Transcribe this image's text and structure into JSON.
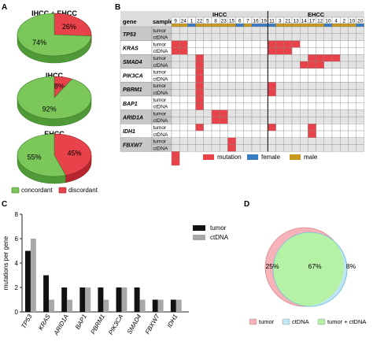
{
  "panels": {
    "A": "A",
    "B": "B",
    "C": "C",
    "D": "D"
  },
  "chart_data": [
    {
      "type": "pie",
      "panel": "A",
      "charts": [
        {
          "title": "IHCC + EHCC",
          "slices": [
            {
              "label": "74%",
              "value": 74,
              "category": "concordant"
            },
            {
              "label": "26%",
              "value": 26,
              "category": "discordant"
            }
          ]
        },
        {
          "title": "IHCC",
          "slices": [
            {
              "label": "92%",
              "value": 92,
              "category": "concordant"
            },
            {
              "label": "8%",
              "value": 8,
              "category": "discordant"
            }
          ]
        },
        {
          "title": "EHCC",
          "slices": [
            {
              "label": "55%",
              "value": 55,
              "category": "concordant"
            },
            {
              "label": "45%",
              "value": 45,
              "category": "discordant"
            }
          ]
        }
      ],
      "legend": [
        {
          "label": "concordant",
          "color": "#7bc75a"
        },
        {
          "label": "discordant",
          "color": "#e8424a"
        }
      ]
    },
    {
      "type": "heatmap",
      "panel": "B",
      "header": {
        "gene": "gene",
        "sample": "sample"
      },
      "groups": [
        {
          "name": "IHCC",
          "patients": [
            "9",
            "24",
            "1",
            "22",
            "5",
            "8",
            "23",
            "15",
            "6",
            "7",
            "16",
            "19"
          ]
        },
        {
          "name": "EHCC",
          "patients": [
            "11",
            "3",
            "21",
            "13",
            "14",
            "17",
            "12",
            "10",
            "4",
            "2",
            "10",
            "20"
          ]
        }
      ],
      "sex": [
        "m",
        "m",
        "f",
        "m",
        "m",
        "m",
        "m",
        "m",
        "f",
        "m",
        "f",
        "f",
        "f",
        "m",
        "m",
        "m",
        "m",
        "m",
        "m",
        "f",
        "m",
        "m",
        "m",
        "f"
      ],
      "genes": [
        "TP53",
        "KRAS",
        "SMAD4",
        "PIK3CA",
        "PBRM1",
        "BAP1",
        "ARID1A",
        "IDH1",
        "FBXW7"
      ],
      "sample_labels": [
        "tumor",
        "ctDNA"
      ],
      "mutations": [
        [
          2,
          0
        ],
        [
          2,
          1
        ],
        [
          2,
          12
        ],
        [
          2,
          13
        ],
        [
          2,
          14
        ],
        [
          2,
          15
        ],
        [
          3,
          0
        ],
        [
          3,
          1
        ],
        [
          3,
          12
        ],
        [
          3,
          13
        ],
        [
          3,
          14
        ],
        [
          4,
          3
        ],
        [
          4,
          17
        ],
        [
          4,
          18
        ],
        [
          4,
          19
        ],
        [
          4,
          20
        ],
        [
          5,
          3
        ],
        [
          5,
          16
        ],
        [
          5,
          17
        ],
        [
          5,
          18
        ],
        [
          6,
          3
        ],
        [
          7,
          3
        ],
        [
          8,
          3
        ],
        [
          8,
          12
        ],
        [
          9,
          3
        ],
        [
          9,
          12
        ],
        [
          10,
          3
        ],
        [
          11,
          3
        ],
        [
          12,
          5
        ],
        [
          12,
          6
        ],
        [
          13,
          5
        ],
        [
          13,
          6
        ],
        [
          14,
          3
        ],
        [
          14,
          12
        ],
        [
          14,
          17
        ],
        [
          15,
          17
        ],
        [
          16,
          7
        ],
        [
          17,
          7
        ],
        [
          18,
          0
        ],
        [
          19,
          0
        ]
      ],
      "legend": [
        {
          "label": "mutation",
          "color": "#e8424a"
        },
        {
          "label": "female",
          "color": "#3a7cc4"
        },
        {
          "label": "male",
          "color": "#c79a1e"
        }
      ],
      "colors": {
        "mutation": "#e8424a",
        "female": "#3a7cc4",
        "male": "#c79a1e",
        "empty": "#ffffff",
        "cell_border": "#999999"
      }
    },
    {
      "type": "bar",
      "panel": "C",
      "categories": [
        "TP53",
        "KRAS",
        "ARID1A",
        "BAP1",
        "PBRM1",
        "PIK3CA",
        "SMAD4",
        "FBXW7",
        "IDH1"
      ],
      "series": [
        {
          "name": "tumor",
          "values": [
            5,
            3,
            2,
            2,
            2,
            2,
            2,
            1,
            1
          ],
          "color": "#111111"
        },
        {
          "name": "ctDNA",
          "values": [
            6,
            1,
            1,
            2,
            1,
            2,
            1,
            1,
            1
          ],
          "color": "#a8a8a8"
        }
      ],
      "ylabel": "mutations per gene",
      "ylim": [
        0,
        8
      ],
      "yticks": [
        0,
        2,
        4,
        6,
        8
      ],
      "legend_position": "top-right"
    },
    {
      "type": "venn",
      "panel": "D",
      "regions": [
        {
          "label": "25%",
          "value": 25
        },
        {
          "label": "67%",
          "value": 67
        },
        {
          "label": "8%",
          "value": 8
        }
      ],
      "legend": [
        {
          "label": "tumor",
          "color": "#f7b3b8"
        },
        {
          "label": "ctDNA",
          "color": "#bfe6f5"
        },
        {
          "label": "tumor + ctDNA",
          "color": "#b6f2a6"
        }
      ]
    }
  ]
}
